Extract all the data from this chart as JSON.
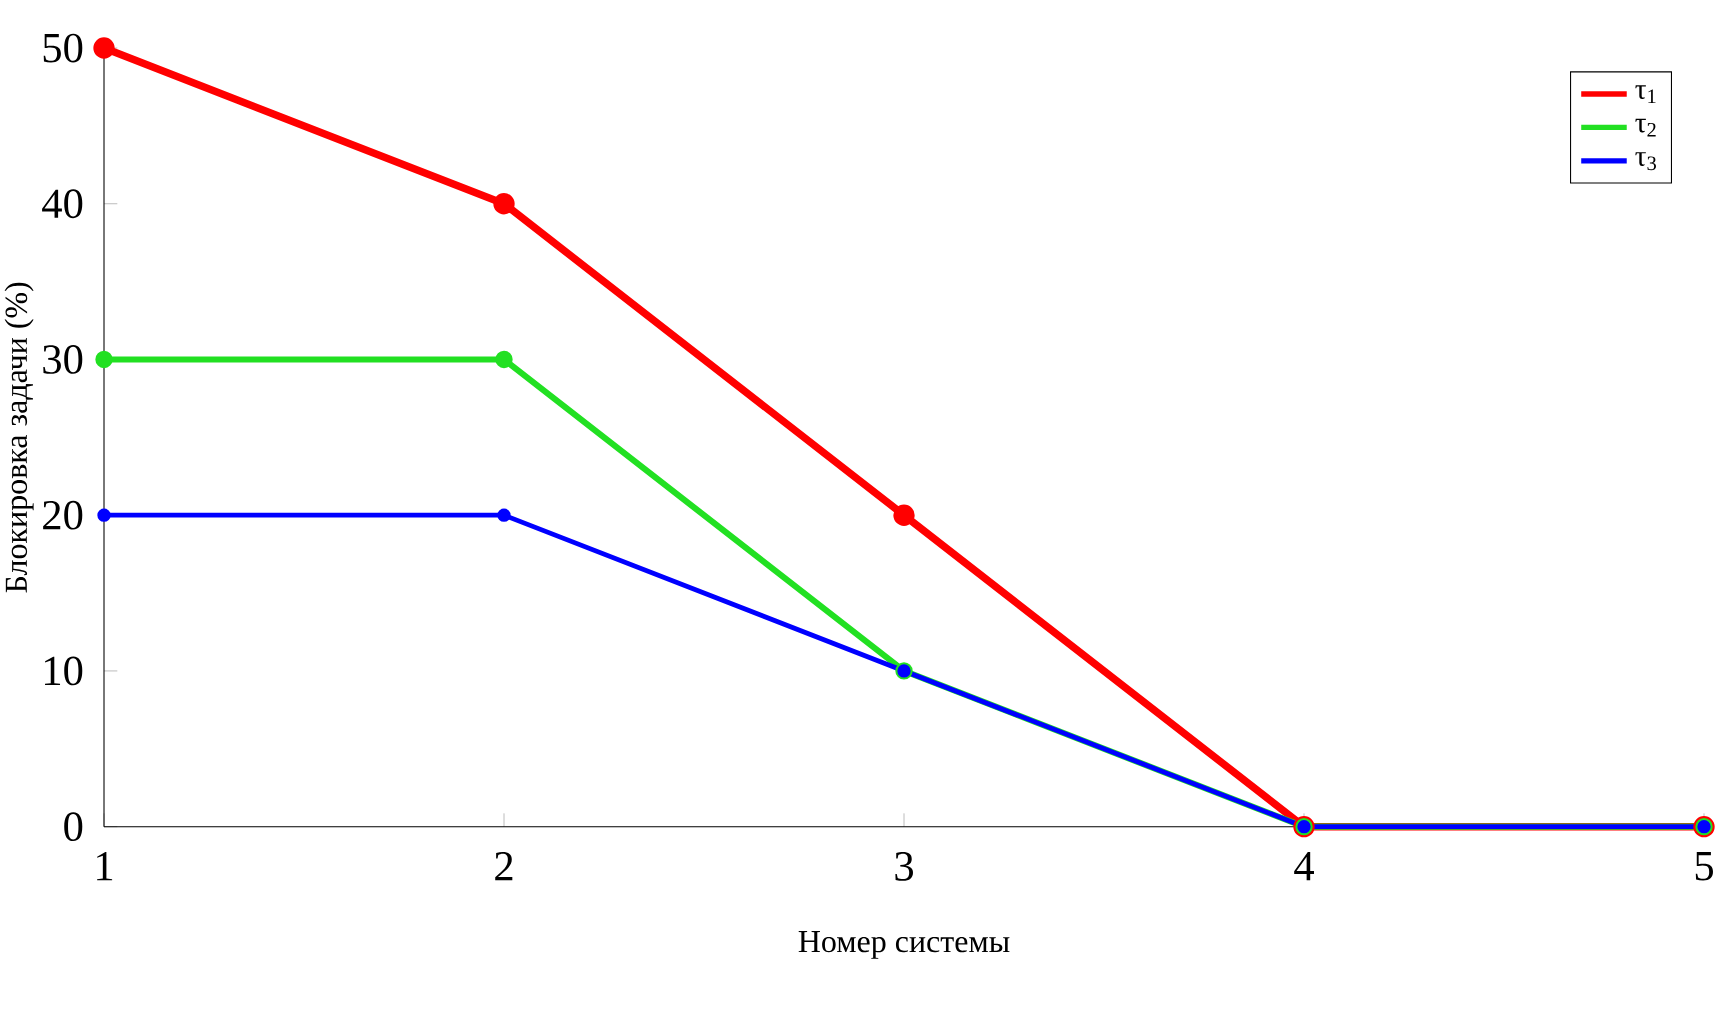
{
  "chart_data": {
    "type": "line",
    "xlabel": "Номер системы",
    "ylabel": "Блокировка задачи (%)",
    "x": [
      1,
      2,
      3,
      4,
      5
    ],
    "xlim": [
      1,
      5
    ],
    "xticks": [
      1,
      2,
      3,
      4,
      5
    ],
    "ylim": [
      0,
      50
    ],
    "yticks": [
      0,
      10,
      20,
      30,
      40,
      50
    ],
    "series": [
      {
        "name": "τ$_{1}$",
        "color": "#ff0000",
        "values": [
          50,
          40,
          20,
          0,
          0
        ]
      },
      {
        "name": "τ$_{2}$",
        "color": "#22e022",
        "values": [
          30,
          30,
          10,
          0,
          0
        ]
      },
      {
        "name": "τ$_{3}$",
        "color": "#0000ff",
        "values": [
          20,
          20,
          10,
          0,
          0
        ]
      }
    ],
    "marker": "circle",
    "line_style": "solid",
    "legend": "top right",
    "grid": false
  }
}
